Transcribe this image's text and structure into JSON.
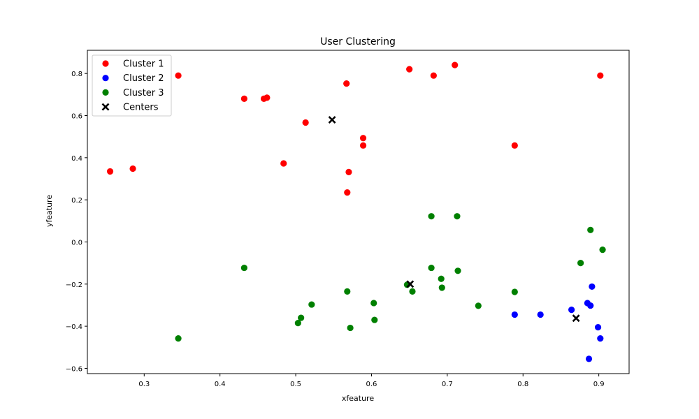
{
  "chart_data": {
    "type": "scatter",
    "title": "User Clustering",
    "xlabel": "xfeature",
    "ylabel": "yfeature",
    "xlim": [
      0.225,
      0.94
    ],
    "ylim": [
      -0.625,
      0.91
    ],
    "x_ticks": [
      0.3,
      0.4,
      0.5,
      0.6,
      0.7,
      0.8,
      0.9
    ],
    "y_ticks": [
      -0.6,
      -0.4,
      -0.2,
      0.0,
      0.2,
      0.4,
      0.6,
      0.8
    ],
    "x_tick_labels": [
      "0.3",
      "0.4",
      "0.5",
      "0.6",
      "0.7",
      "0.8",
      "0.9"
    ],
    "y_tick_labels": [
      "−0.6",
      "−0.4",
      "−0.2",
      "0.0",
      "0.2",
      "0.4",
      "0.6",
      "0.8"
    ],
    "grid": false,
    "legend_position": "top-left",
    "series": [
      {
        "name": "Cluster 1",
        "color": "#ff0000",
        "marker": "circle",
        "points": [
          [
            0.255,
            0.335
          ],
          [
            0.285,
            0.348
          ],
          [
            0.345,
            0.79
          ],
          [
            0.432,
            0.68
          ],
          [
            0.458,
            0.68
          ],
          [
            0.462,
            0.685
          ],
          [
            0.484,
            0.373
          ],
          [
            0.513,
            0.567
          ],
          [
            0.567,
            0.752
          ],
          [
            0.568,
            0.235
          ],
          [
            0.57,
            0.332
          ],
          [
            0.589,
            0.493
          ],
          [
            0.589,
            0.458
          ],
          [
            0.65,
            0.82
          ],
          [
            0.682,
            0.79
          ],
          [
            0.71,
            0.84
          ],
          [
            0.789,
            0.458
          ],
          [
            0.902,
            0.79
          ]
        ]
      },
      {
        "name": "Cluster 2",
        "color": "#0000ff",
        "marker": "circle",
        "points": [
          [
            0.789,
            -0.345
          ],
          [
            0.823,
            -0.345
          ],
          [
            0.864,
            -0.322
          ],
          [
            0.885,
            -0.29
          ],
          [
            0.889,
            -0.302
          ],
          [
            0.891,
            -0.212
          ],
          [
            0.899,
            -0.405
          ],
          [
            0.902,
            -0.458
          ],
          [
            0.887,
            -0.555
          ]
        ]
      },
      {
        "name": "Cluster 3",
        "color": "#008000",
        "marker": "circle",
        "points": [
          [
            0.345,
            -0.458
          ],
          [
            0.432,
            -0.123
          ],
          [
            0.503,
            -0.385
          ],
          [
            0.507,
            -0.36
          ],
          [
            0.521,
            -0.297
          ],
          [
            0.568,
            -0.235
          ],
          [
            0.572,
            -0.408
          ],
          [
            0.603,
            -0.29
          ],
          [
            0.604,
            -0.37
          ],
          [
            0.647,
            -0.203
          ],
          [
            0.654,
            -0.235
          ],
          [
            0.679,
            0.122
          ],
          [
            0.679,
            -0.123
          ],
          [
            0.692,
            -0.175
          ],
          [
            0.693,
            -0.217
          ],
          [
            0.713,
            0.122
          ],
          [
            0.714,
            -0.137
          ],
          [
            0.741,
            -0.303
          ],
          [
            0.789,
            -0.237
          ],
          [
            0.876,
            -0.1
          ],
          [
            0.889,
            0.057
          ],
          [
            0.905,
            -0.037
          ]
        ]
      },
      {
        "name": "Centers",
        "color": "#000000",
        "marker": "x",
        "points": [
          [
            0.548,
            0.58
          ],
          [
            0.651,
            -0.2
          ],
          [
            0.87,
            -0.362
          ]
        ]
      }
    ]
  }
}
